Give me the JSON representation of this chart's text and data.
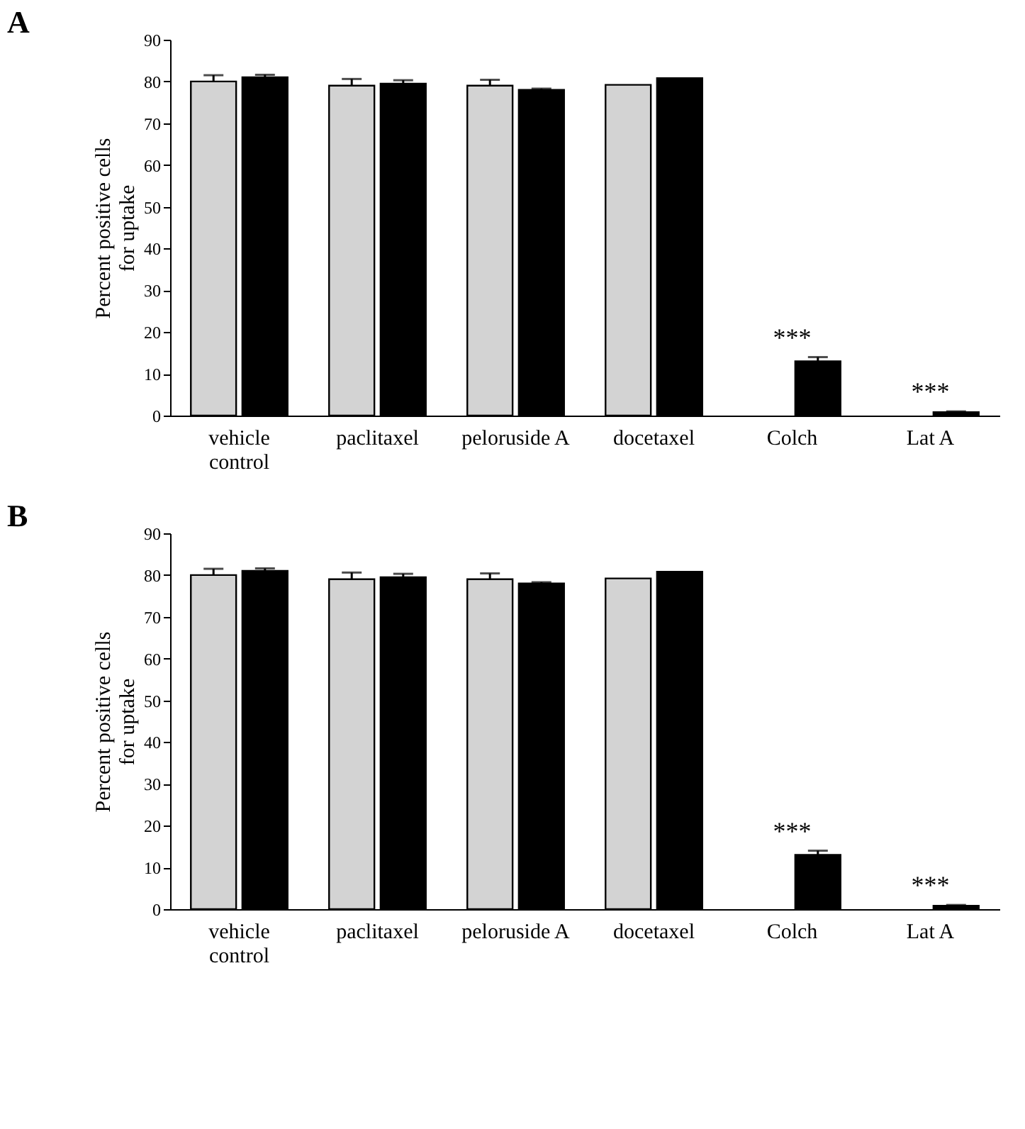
{
  "chart_data": [
    {
      "type": "bar",
      "title": "A",
      "ylabel": "Percent positive cells\nfor uptake",
      "categories": [
        "vehicle\ncontrol",
        "paclitaxel",
        "peloruside A",
        "docetaxel",
        "Colch",
        "Lat A"
      ],
      "ylim": [
        0,
        90
      ],
      "yticks": [
        0,
        10,
        20,
        30,
        40,
        50,
        60,
        70,
        80,
        90
      ],
      "grid": false,
      "series": [
        {
          "color": "#d3d3d3",
          "values": [
            80,
            79,
            79,
            79.2,
            null,
            null
          ],
          "errors": [
            1.5,
            1.6,
            1.4,
            null,
            null,
            null
          ]
        },
        {
          "color": "#000000",
          "values": [
            81,
            79.5,
            78,
            80.8,
            13,
            0.8
          ],
          "errors": [
            0.6,
            0.8,
            0.3,
            null,
            1,
            0.2
          ]
        }
      ],
      "annotations": [
        {
          "text": "***",
          "x": "Colch",
          "y": 14
        },
        {
          "text": "***",
          "x": "Lat A",
          "y": 1
        }
      ]
    },
    {
      "type": "bar",
      "title": "B",
      "ylabel": "Percent positive cells\nfor uptake",
      "categories": [
        "vehicle\ncontrol",
        "paclitaxel",
        "peloruside A",
        "docetaxel",
        "Colch",
        "Lat A"
      ],
      "ylim": [
        0,
        90
      ],
      "yticks": [
        0,
        10,
        20,
        30,
        40,
        50,
        60,
        70,
        80,
        90
      ],
      "grid": false,
      "series": [
        {
          "color": "#d3d3d3",
          "values": [
            80,
            79,
            79,
            79.2,
            null,
            null
          ],
          "errors": [
            1.5,
            1.6,
            1.4,
            null,
            null,
            null
          ]
        },
        {
          "color": "#000000",
          "values": [
            81,
            79.5,
            78,
            80.8,
            13,
            0.8
          ],
          "errors": [
            0.6,
            0.8,
            0.3,
            null,
            1,
            0.2
          ]
        }
      ],
      "annotations": [
        {
          "text": "***",
          "x": "Colch",
          "y": 14
        },
        {
          "text": "***",
          "x": "Lat A",
          "y": 1
        }
      ]
    }
  ]
}
